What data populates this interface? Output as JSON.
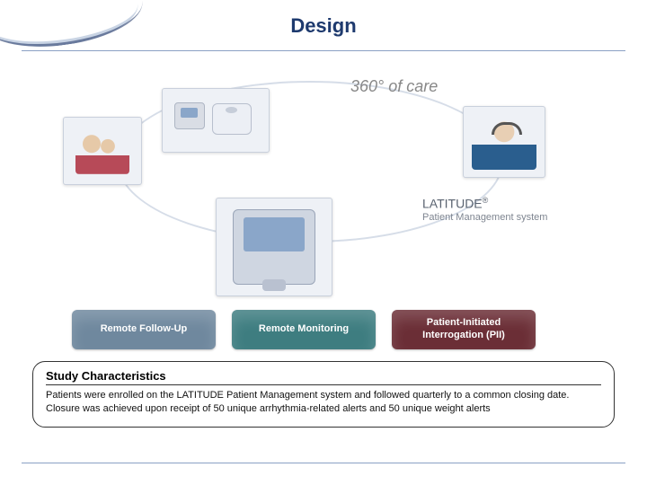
{
  "title": "Design",
  "tagline": "360° of care",
  "brand": {
    "name": "LATITUDE",
    "reg": "®",
    "sub": "Patient Management system"
  },
  "pills": [
    {
      "label": "Remote Follow-Up",
      "color": "#6f889e"
    },
    {
      "label": "Remote Monitoring",
      "color": "#3e7d80"
    },
    {
      "label": "Patient-Initiated\nInterrogation (PII)",
      "color": "#6b2e36"
    }
  ],
  "study": {
    "heading": "Study Characteristics",
    "text": "Patients were enrolled on the LATITUDE Patient Management system and followed quarterly to a common closing date.  Closure was achieved upon receipt of 50 unique arrhythmia-related alerts and 50 unique weight alerts"
  },
  "colors": {
    "title": "#1e3a6e",
    "rule": "#8aa0c4",
    "tagline": "#888888",
    "brand_text": "#5a6370",
    "brand_sub": "#7e8590",
    "ellipse": "#d6dde8",
    "background": "#ffffff"
  }
}
